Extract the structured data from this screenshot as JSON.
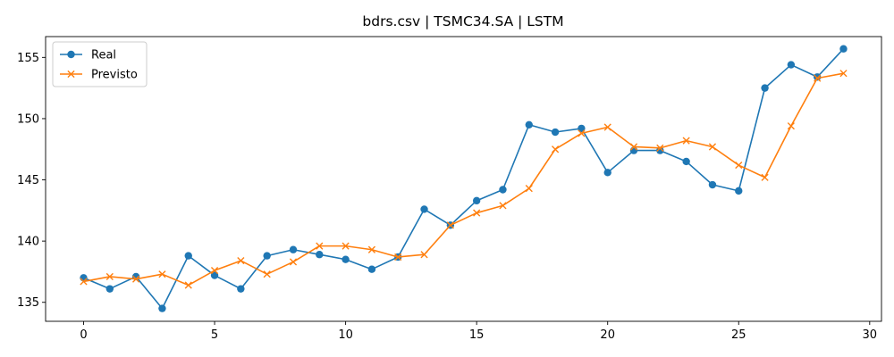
{
  "chart_data": {
    "type": "line",
    "title": "bdrs.csv | TSMC34.SA | LSTM",
    "xlabel": "",
    "ylabel": "",
    "xlim": [
      -1.45,
      30.45
    ],
    "ylim": [
      133.45,
      156.7
    ],
    "xticks": [
      0,
      5,
      10,
      15,
      20,
      25,
      30
    ],
    "yticks": [
      135,
      140,
      145,
      150,
      155
    ],
    "legend_position": "upper-left",
    "grid": false,
    "x": [
      0,
      1,
      2,
      3,
      4,
      5,
      6,
      7,
      8,
      9,
      10,
      11,
      12,
      13,
      14,
      15,
      16,
      17,
      18,
      19,
      20,
      21,
      22,
      23,
      24,
      25,
      26,
      27,
      28,
      29
    ],
    "series": [
      {
        "name": "Real",
        "color": "#1f77b4",
        "marker": "circle",
        "values": [
          137.0,
          136.1,
          137.1,
          134.5,
          138.8,
          137.2,
          136.1,
          138.8,
          139.3,
          138.9,
          138.5,
          137.7,
          138.7,
          142.6,
          141.3,
          143.3,
          144.2,
          149.5,
          148.9,
          149.2,
          145.6,
          147.4,
          147.4,
          146.5,
          144.6,
          144.1,
          152.5,
          154.4,
          153.4,
          155.7
        ]
      },
      {
        "name": "Previsto",
        "color": "#ff7f0e",
        "marker": "x",
        "values": [
          136.7,
          137.1,
          136.9,
          137.3,
          136.4,
          137.6,
          138.4,
          137.3,
          138.3,
          139.6,
          139.6,
          139.3,
          138.7,
          138.9,
          141.3,
          142.3,
          142.9,
          144.3,
          147.5,
          148.8,
          149.3,
          147.7,
          147.6,
          148.2,
          147.7,
          146.2,
          145.2,
          149.4,
          153.3,
          153.7
        ]
      }
    ]
  }
}
